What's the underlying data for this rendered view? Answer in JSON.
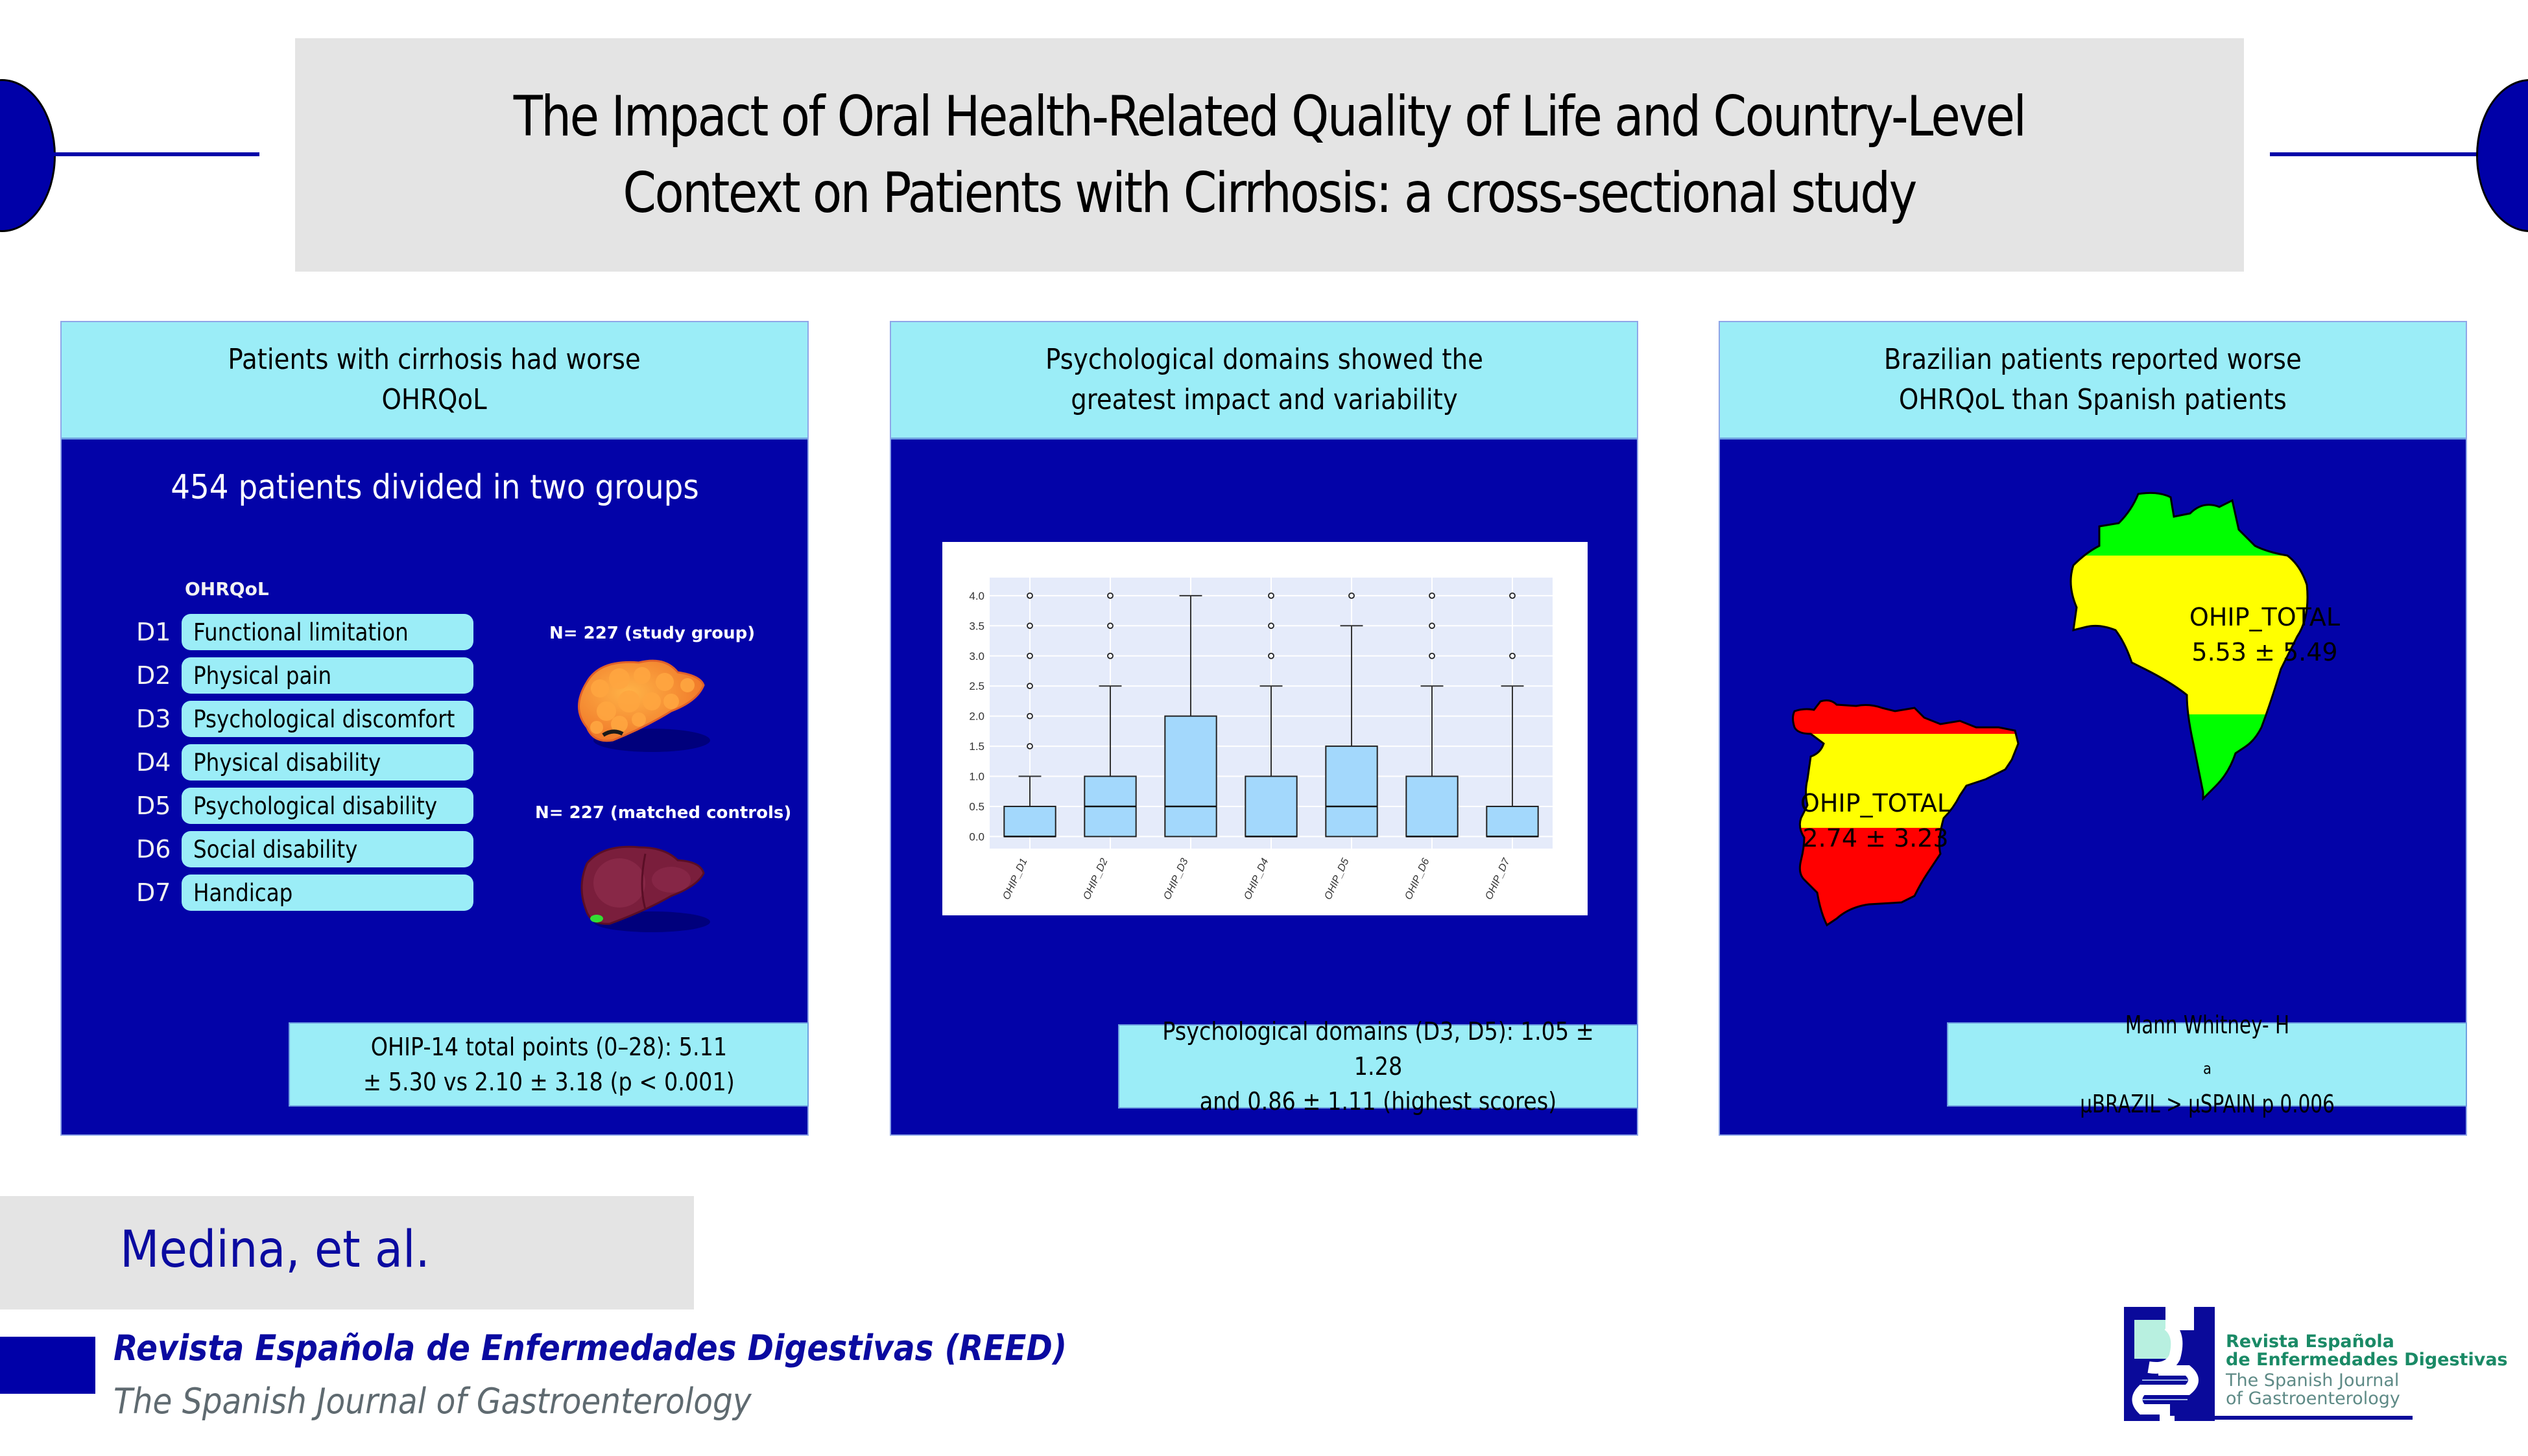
{
  "title": {
    "line1": "The Impact of Oral Health-Related Quality of Life and Country-Level",
    "line2": "Context on Patients with Cirrhosis: a cross-sectional study"
  },
  "colors": {
    "navy": "#0303a8",
    "cyan": "#9bedf7",
    "box_fill": "#a3d8fc",
    "plot_bg": "#e5ebfa",
    "spain_red": "#ff0000",
    "flag_yellow": "#ffff00",
    "brazil_green": "#00ff00"
  },
  "panel1": {
    "header_line1": "Patients with cirrhosis had worse",
    "header_line2": "OHRQoL",
    "groups_title": "454 patients divided in two groups",
    "ohrqol_label": "OHRQoL",
    "domains": [
      {
        "code": "D1",
        "label": "Functional limitation"
      },
      {
        "code": "D2",
        "label": "Physical pain"
      },
      {
        "code": "D3",
        "label": "Psychological discomfort"
      },
      {
        "code": "D4",
        "label": "Physical disability"
      },
      {
        "code": "D5",
        "label": "Psychological disability"
      },
      {
        "code": "D6",
        "label": "Social disability"
      },
      {
        "code": "D7",
        "label": "Handicap"
      }
    ],
    "study_group": "N= 227 (study group)",
    "control_group": "N= 227 (matched controls)",
    "study_icon": "cirrhotic-liver-icon",
    "control_icon": "healthy-liver-icon",
    "callout_line1": "OHIP-14 total points (0–28): 5.11",
    "callout_line2": "± 5.30 vs 2.10 ± 3.18 (p < 0.001)"
  },
  "panel2": {
    "header_line1": "Psychological domains showed the",
    "header_line2": "greatest impact and variability",
    "callout_line1": "Psychological domains (D3, D5): 1.05 ± 1.28",
    "callout_line2": "and 0.86 ± 1.11 (highest scores)"
  },
  "panel3": {
    "header_line1": "Brazilian patients reported worse",
    "header_line2": "OHRQoL than Spanish patients",
    "brazil_label": "OHIP_TOTAL",
    "brazil_value": "5.53 ± 5.49",
    "spain_label": "OHIP_TOTAL",
    "spain_value": "2.74 ± 3.23",
    "callout_pre": "Mann Whitney- H",
    "callout_sub": "a",
    "callout_post": " µBRAZIL > µSPAIN p 0.006"
  },
  "chart_data": {
    "type": "box",
    "title": "",
    "xlabel": "",
    "ylabel": "",
    "ylim": [
      -0.2,
      4.3
    ],
    "yticks": [
      "0.0",
      "0.5",
      "1.0",
      "1.5",
      "2.0",
      "2.5",
      "3.0",
      "3.5",
      "4.0"
    ],
    "grid": true,
    "categories": [
      "OHIP_D1",
      "OHIP_D2",
      "OHIP_D3",
      "OHIP_D4",
      "OHIP_D5",
      "OHIP_D6",
      "OHIP_D7"
    ],
    "boxes": [
      {
        "name": "OHIP_D1",
        "whisker_low": 0,
        "q1": 0,
        "median": 0,
        "q3": 0.5,
        "whisker_high": 1.0,
        "outliers": [
          1.5,
          2.0,
          2.5,
          3.0,
          3.5,
          4.0
        ]
      },
      {
        "name": "OHIP_D2",
        "whisker_low": 0,
        "q1": 0,
        "median": 0.5,
        "q3": 1.0,
        "whisker_high": 2.5,
        "outliers": [
          3.0,
          3.5,
          4.0
        ]
      },
      {
        "name": "OHIP_D3",
        "whisker_low": 0,
        "q1": 0,
        "median": 0.5,
        "q3": 2.0,
        "whisker_high": 4.0,
        "outliers": []
      },
      {
        "name": "OHIP_D4",
        "whisker_low": 0,
        "q1": 0,
        "median": 0,
        "q3": 1.0,
        "whisker_high": 2.5,
        "outliers": [
          3.0,
          3.5,
          4.0
        ]
      },
      {
        "name": "OHIP_D5",
        "whisker_low": 0,
        "q1": 0,
        "median": 0.5,
        "q3": 1.5,
        "whisker_high": 3.5,
        "outliers": [
          4.0
        ]
      },
      {
        "name": "OHIP_D6",
        "whisker_low": 0,
        "q1": 0,
        "median": 0,
        "q3": 1.0,
        "whisker_high": 2.5,
        "outliers": [
          3.0,
          3.5,
          4.0
        ]
      },
      {
        "name": "OHIP_D7",
        "whisker_low": 0,
        "q1": 0,
        "median": 0,
        "q3": 0.5,
        "whisker_high": 2.5,
        "outliers": [
          3.0,
          4.0
        ]
      }
    ]
  },
  "footer": {
    "author": "Medina, et al.",
    "journal_es": "Revista Española de Enfermedades Digestivas (REED)",
    "journal_en": "The Spanish Journal of Gastroenterology",
    "logo_line1": "Revista Española",
    "logo_line2": "de Enfermedades Digestivas",
    "logo_line3": "The Spanish Journal",
    "logo_line4": "of Gastroenterology"
  }
}
